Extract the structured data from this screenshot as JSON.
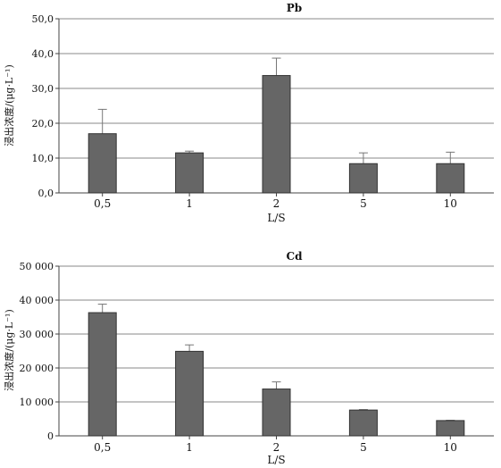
{
  "chart_data": [
    {
      "type": "bar",
      "title": "Pb",
      "xlabel": "L/S",
      "ylabel": "浸出浓度/(μg·L⁻¹)",
      "categories": [
        "0,5",
        "1",
        "2",
        "5",
        "10"
      ],
      "values": [
        17.0,
        11.5,
        33.7,
        8.4,
        8.4
      ],
      "errors": [
        7.0,
        0.5,
        5.0,
        3.1,
        3.3
      ],
      "ylim": [
        0,
        50
      ],
      "yticks": [
        0,
        10,
        20,
        30,
        40,
        50
      ],
      "ytick_labels": [
        "0,0",
        "10,0",
        "20,0",
        "30,0",
        "40,0",
        "50,0"
      ],
      "grid": "horizontal",
      "bar_color": "#666666"
    },
    {
      "type": "bar",
      "title": "Cd",
      "xlabel": "L/S",
      "ylabel": "浸出浓度/(μg·L⁻¹)",
      "categories": [
        "0,5",
        "1",
        "2",
        "5",
        "10"
      ],
      "values": [
        36300,
        24900,
        13800,
        7600,
        4500
      ],
      "errors": [
        2500,
        1900,
        2100,
        150,
        100
      ],
      "ylim": [
        0,
        50000
      ],
      "yticks": [
        0,
        10000,
        20000,
        30000,
        40000,
        50000
      ],
      "ytick_labels": [
        "0",
        "10 000",
        "20 000",
        "30 000",
        "40 000",
        "50 000"
      ],
      "grid": "horizontal",
      "bar_color": "#666666"
    }
  ]
}
